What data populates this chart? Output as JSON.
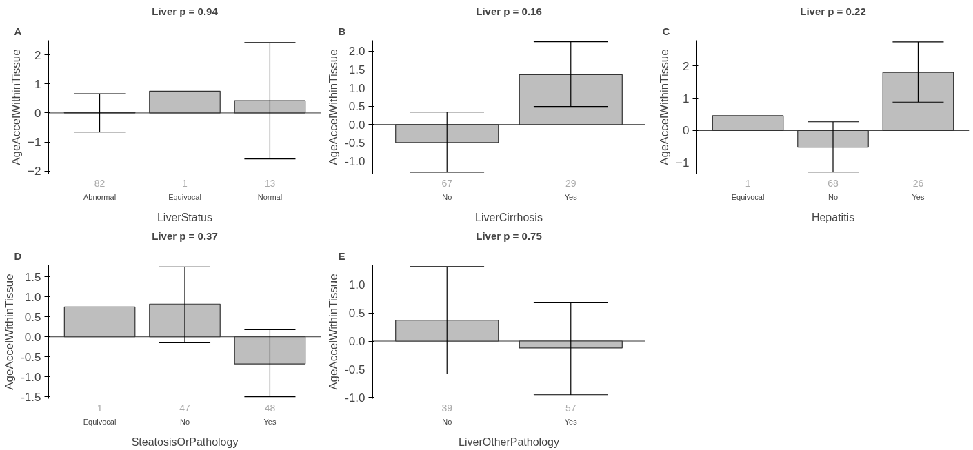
{
  "chart_data": [
    {
      "type": "bar",
      "title": "Liver p = 0.94",
      "xlabel": "LiverStatus",
      "ylabel": "AgeAccelWithinTissue",
      "categories": [
        "Abnormal",
        "Equivocal",
        "Normal"
      ],
      "values": [
        0.02,
        0.75,
        0.42
      ],
      "errors": [
        [
          -0.66,
          0.66
        ],
        null,
        [
          -1.58,
          2.42
        ]
      ],
      "color": "#bebebe",
      "ylim": [
        -2.1,
        2.5
      ],
      "yticks": [
        -2,
        -1,
        0,
        1,
        2
      ],
      "ref_lines": [
        {
          "axis": "y",
          "value": 0
        }
      ],
      "annotations": [
        "A",
        "82",
        "1",
        "13"
      ]
    },
    {
      "type": "bar",
      "title": "Liver p = 0.16",
      "xlabel": "LiverCirrhosis",
      "ylabel": "AgeAccelWithinTissue",
      "categories": [
        "No",
        "Yes"
      ],
      "values": [
        -0.49,
        1.36
      ],
      "errors": [
        [
          -1.3,
          0.34
        ],
        [
          0.49,
          2.26
        ]
      ],
      "color": "#bebebe",
      "ylim": [
        -1.35,
        2.3
      ],
      "yticks": [
        {
          "value": -1.0,
          "label": "-1.0"
        },
        {
          "value": -0.5,
          "label": "-0.5"
        },
        {
          "value": 0.0,
          "label": "0.0"
        },
        {
          "value": 0.5,
          "label": "0.5"
        },
        {
          "value": 1.0,
          "label": "1.0"
        },
        {
          "value": 1.5,
          "label": "1.5"
        },
        {
          "value": 2.0,
          "label": "2.0"
        }
      ],
      "ref_lines": [
        {
          "axis": "y",
          "value": 0
        }
      ],
      "annotations": [
        "B",
        "67",
        "29"
      ]
    },
    {
      "type": "bar",
      "title": "Liver p = 0.22",
      "xlabel": "Hepatitis",
      "ylabel": "AgeAccelWithinTissue",
      "categories": [
        "Equivocal",
        "No",
        "Yes"
      ],
      "values": [
        0.46,
        -0.52,
        1.8
      ],
      "errors": [
        null,
        [
          -1.29,
          0.27
        ],
        [
          0.88,
          2.75
        ]
      ],
      "color": "#bebebe",
      "ylim": [
        -1.35,
        2.8
      ],
      "yticks": [
        -1,
        0,
        1,
        2
      ],
      "ref_lines": [
        {
          "axis": "y",
          "value": 0
        }
      ],
      "annotations": [
        "C",
        "1",
        "68",
        "26"
      ]
    },
    {
      "type": "bar",
      "title": "Liver p = 0.37",
      "xlabel": "SteatosisOrPathology",
      "ylabel": "AgeAccelWithinTissue",
      "categories": [
        "Equivocal",
        "No",
        "Yes"
      ],
      "values": [
        0.75,
        0.82,
        -0.68
      ],
      "errors": [
        null,
        [
          -0.15,
          1.75
        ],
        [
          -1.5,
          0.18
        ]
      ],
      "color": "#bebebe",
      "ylim": [
        -1.55,
        1.8
      ],
      "yticks": [
        {
          "value": -1.5,
          "label": "-1.5"
        },
        {
          "value": -1.0,
          "label": "-1.0"
        },
        {
          "value": -0.5,
          "label": "-0.5"
        },
        {
          "value": 0.0,
          "label": "0.0"
        },
        {
          "value": 0.5,
          "label": "0.5"
        },
        {
          "value": 1.0,
          "label": "1.0"
        },
        {
          "value": 1.5,
          "label": "1.5"
        }
      ],
      "ref_lines": [
        {
          "axis": "y",
          "value": 0
        }
      ],
      "annotations": [
        "D",
        "1",
        "47",
        "48"
      ]
    },
    {
      "type": "bar",
      "title": "Liver p = 0.75",
      "xlabel": "LiverOtherPathology",
      "ylabel": "AgeAccelWithinTissue",
      "categories": [
        "No",
        "Yes"
      ],
      "values": [
        0.37,
        -0.12
      ],
      "errors": [
        [
          -0.58,
          1.32
        ],
        [
          -0.95,
          0.69
        ]
      ],
      "color": "#bebebe",
      "ylim": [
        -1.02,
        1.35
      ],
      "yticks": [
        {
          "value": -1.0,
          "label": "-1.0"
        },
        {
          "value": -0.5,
          "label": "-0.5"
        },
        {
          "value": 0.0,
          "label": "0.0"
        },
        {
          "value": 0.5,
          "label": "0.5"
        },
        {
          "value": 1.0,
          "label": "1.0"
        }
      ],
      "ref_lines": [
        {
          "axis": "y",
          "value": 0
        }
      ],
      "annotations": [
        "E",
        "39",
        "57"
      ]
    }
  ]
}
